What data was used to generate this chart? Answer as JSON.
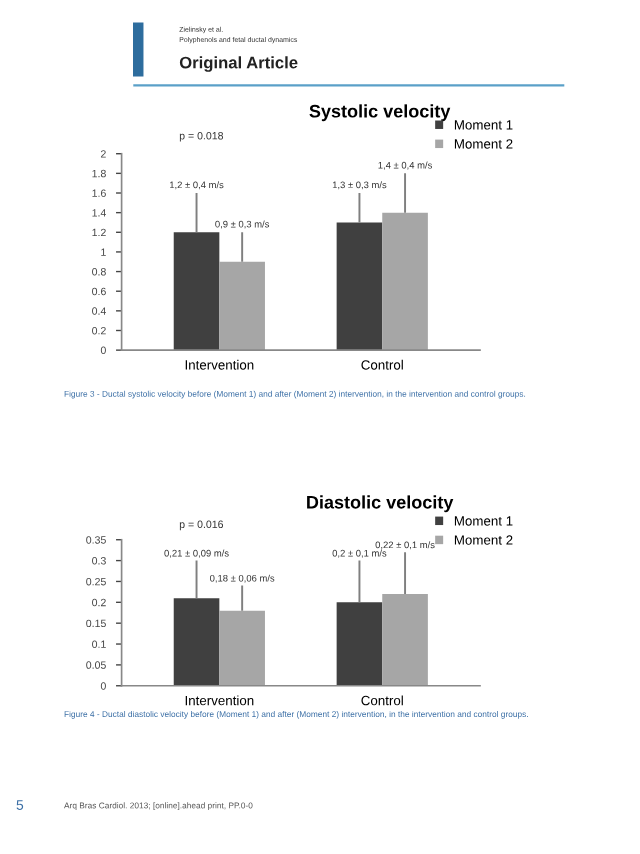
{
  "chart_data": [
    {
      "type": "bar",
      "title": "Systolic velocity",
      "categories": [
        "Intervention",
        "Control"
      ],
      "series": [
        {
          "name": "Moment 1",
          "color": "#404040",
          "values": [
            1.2,
            1.3
          ],
          "errors": [
            [
              1.2,
              1.6
            ],
            [
              1.3,
              1.6
            ]
          ]
        },
        {
          "name": "Moment 2",
          "color": "#a6a6a6",
          "values": [
            0.9,
            1.4
          ],
          "errors": [
            [
              0.9,
              1.2
            ],
            [
              1.4,
              1.8
            ]
          ]
        }
      ],
      "ylim": [
        0,
        2
      ],
      "yticks": [
        0,
        0.2,
        0.4,
        0.6,
        0.8,
        1,
        1.2,
        1.4,
        1.6,
        1.8,
        2
      ],
      "legend": "top right",
      "annotations": [
        "Zielinsky et al.",
        "Polyphenols and fetal ductal dynamics",
        "Original Article",
        "p = 0.018",
        "1,2 ± 0,4 m/s",
        "1,3 ± 0,3 m/s",
        "0,9 ± 0,3 m/s",
        "1,4 ± 0,4 m/s",
        "Figure 3 - Ductal systolic velocity before (Moment 1) and after (Moment 2) intervention, in the intervention and control groups."
      ]
    },
    {
      "type": "bar",
      "title": "Diastolic velocity",
      "categories": [
        "Intervention",
        "Control"
      ],
      "series": [
        {
          "name": "Moment 1",
          "color": "#404040",
          "values": [
            0.21,
            0.2
          ],
          "errors": [
            [
              0.21,
              0.3
            ],
            [
              0.2,
              0.3
            ]
          ]
        },
        {
          "name": "Moment 2",
          "color": "#a6a6a6",
          "values": [
            0.18,
            0.22
          ],
          "errors": [
            [
              0.18,
              0.24
            ],
            [
              0.22,
              0.32
            ]
          ]
        }
      ],
      "ylim": [
        0,
        0.35
      ],
      "yticks": [
        0,
        0.05,
        0.1,
        0.15,
        0.2,
        0.25,
        0.3,
        0.35
      ],
      "legend": "top right",
      "annotations": [
        "p = 0.016",
        "0,21 ± 0,09 m/s",
        "0,2 ± 0,1 m/s",
        "0,18 ± 0,06 m/s",
        "0,22 ± 0,1 m/s",
        "Figure 4 - Ductal diastolic velocity before (Moment 1) and after (Moment 2) intervention, in the intervention and control groups.",
        "5",
        "Arq Bras Cardiol. 2013; [online].ahead print, PP.0-0"
      ]
    }
  ]
}
